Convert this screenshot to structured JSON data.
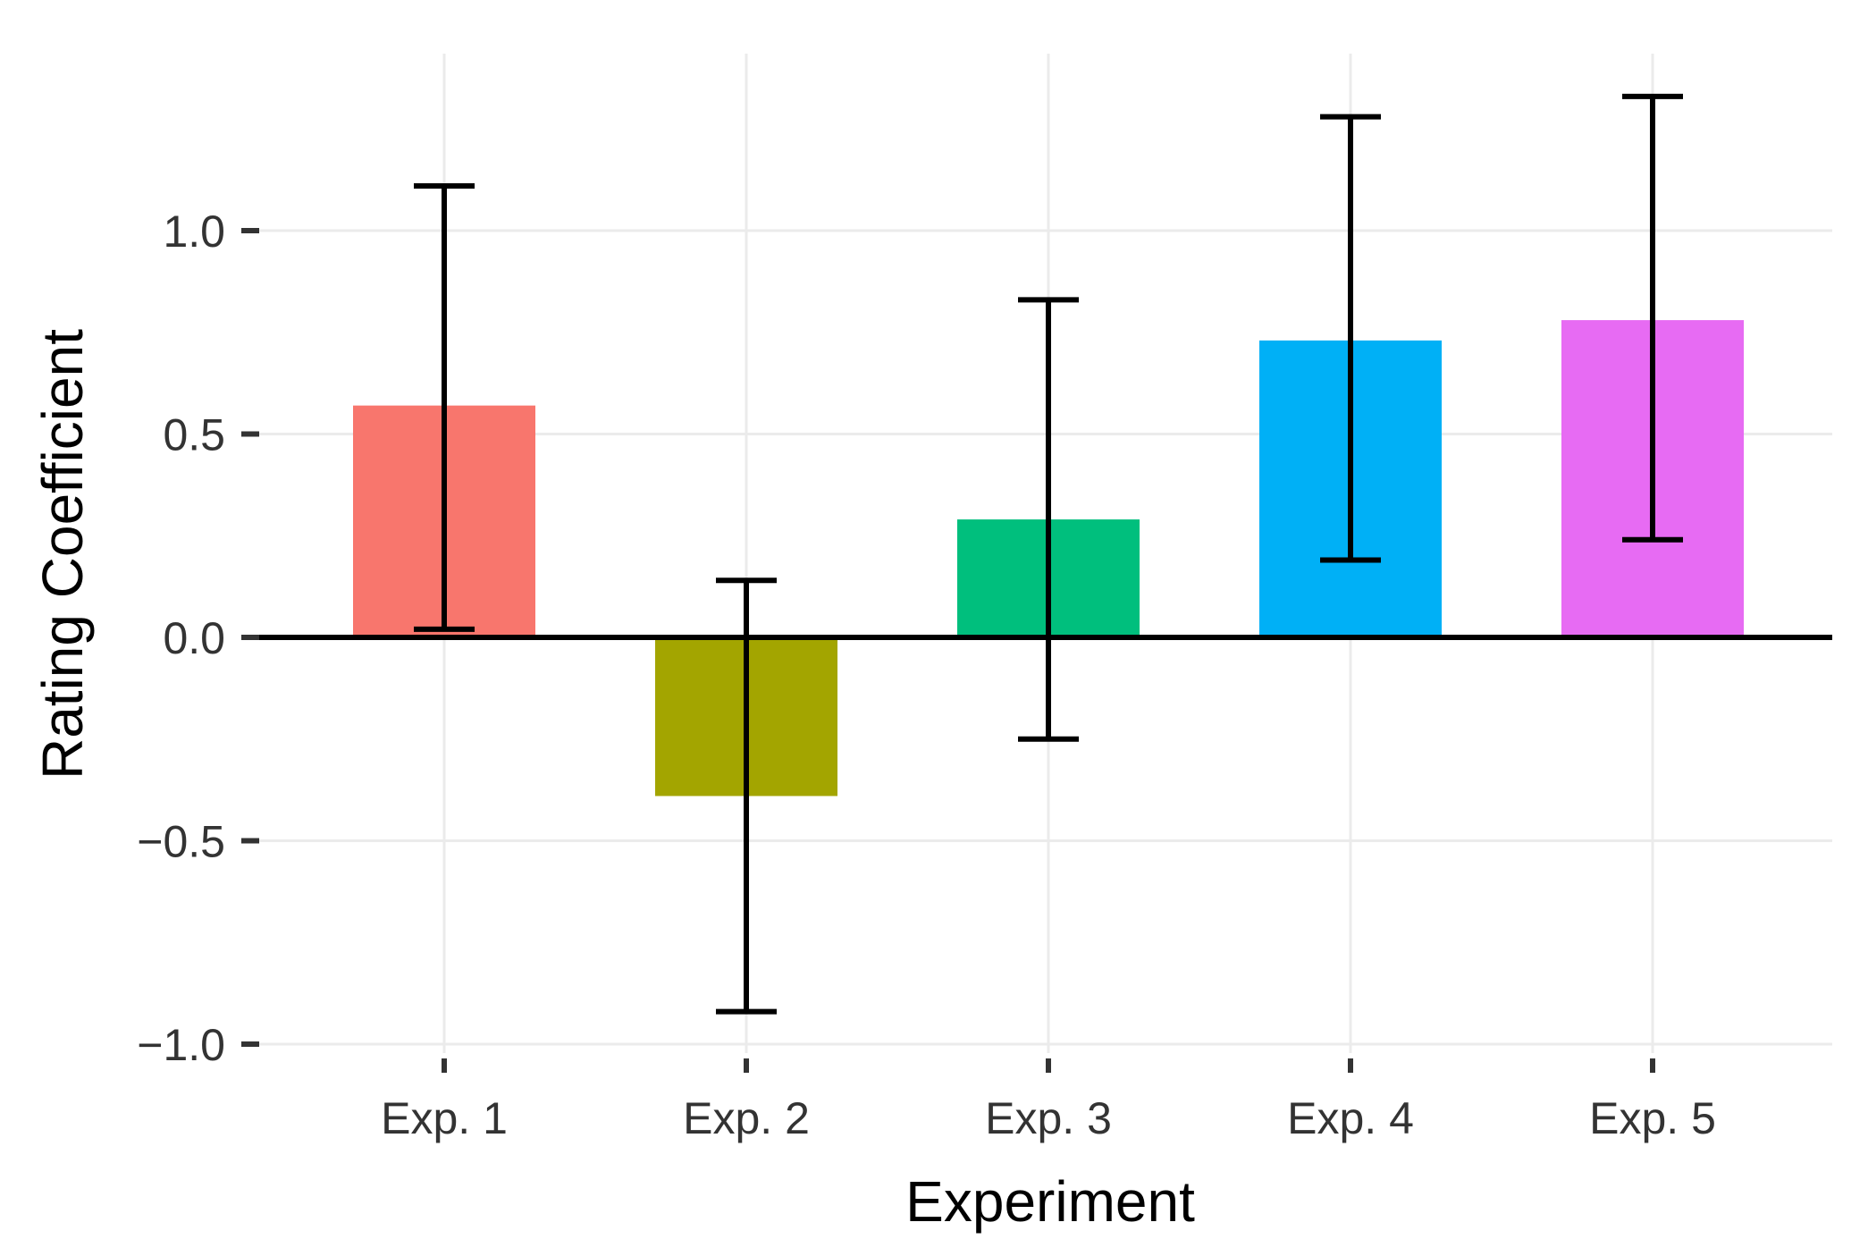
{
  "chart_data": {
    "type": "bar",
    "title": "",
    "xlabel": "Experiment",
    "ylabel": "Rating Coefficient",
    "categories": [
      "Exp. 1",
      "Exp. 2",
      "Exp. 3",
      "Exp. 4",
      "Exp. 5"
    ],
    "values": [
      0.57,
      -0.39,
      0.29,
      0.73,
      0.78
    ],
    "error_low": [
      0.02,
      -0.92,
      -0.25,
      0.19,
      0.24
    ],
    "error_high": [
      1.11,
      0.14,
      0.83,
      1.28,
      1.33
    ],
    "colors": [
      "#F8766D",
      "#A3A500",
      "#00BF7D",
      "#00B0F6",
      "#E76BF3"
    ],
    "ylim": [
      -1.1,
      1.44
    ],
    "yticks": [
      -1.0,
      -0.5,
      0.0,
      0.5,
      1.0
    ],
    "ytick_labels": [
      "−1.0",
      "−0.5",
      "0.0",
      "0.5",
      "1.0"
    ],
    "grid": true,
    "reference_line": 0
  }
}
